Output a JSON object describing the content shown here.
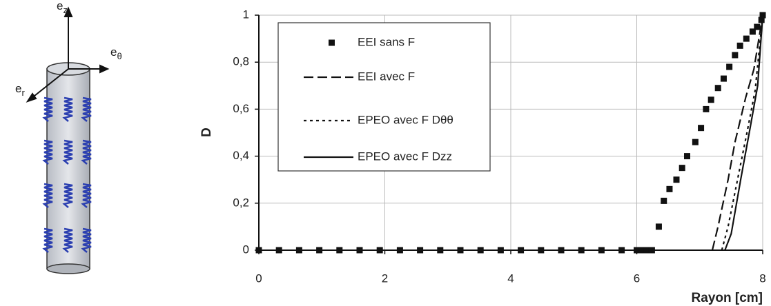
{
  "diagram": {
    "axis_labels": [
      {
        "main": "e",
        "sub": "z"
      },
      {
        "main": "e",
        "sub": "θ"
      },
      {
        "main": "e",
        "sub": "r"
      }
    ]
  },
  "chart_data": {
    "type": "line",
    "ylabel": "D",
    "xlabel": "Rayon [cm]",
    "xlim": [
      0,
      8
    ],
    "xticks": [
      0,
      2,
      4,
      6,
      8
    ],
    "ylim": [
      0,
      1
    ],
    "yticks": [
      0,
      {
        "value": 0.2,
        "label": "0,2"
      },
      {
        "value": 0.4,
        "label": "0,4"
      },
      {
        "value": 0.6,
        "label": "0,6"
      },
      {
        "value": 0.8,
        "label": "0,8"
      },
      1
    ],
    "grid": true,
    "series": [
      {
        "name": "EEI sans F",
        "color": "#111111",
        "style": "markers",
        "x": [
          0,
          0.32,
          0.64,
          0.96,
          1.28,
          1.6,
          1.92,
          2.24,
          2.56,
          2.88,
          3.2,
          3.52,
          3.84,
          4.16,
          4.48,
          4.8,
          5.12,
          5.44,
          5.76,
          6.0,
          6.08,
          6.16,
          6.24,
          6.35,
          6.43,
          6.52,
          6.63,
          6.72,
          6.8,
          6.93,
          7.02,
          7.1,
          7.18,
          7.29,
          7.38,
          7.47,
          7.56,
          7.64,
          7.74,
          7.84,
          7.91,
          7.98,
          8
        ],
        "values": [
          0,
          0,
          0,
          0,
          0,
          0,
          0,
          0,
          0,
          0,
          0,
          0,
          0,
          0,
          0,
          0,
          0,
          0,
          0,
          0,
          0,
          0,
          0,
          0.1,
          0.21,
          0.26,
          0.3,
          0.35,
          0.4,
          0.46,
          0.52,
          0.6,
          0.64,
          0.69,
          0.73,
          0.78,
          0.83,
          0.87,
          0.9,
          0.93,
          0.95,
          0.98,
          1
        ]
      },
      {
        "name": "EEI avec F",
        "color": "#111111",
        "style": "dashed",
        "x": [
          7.2,
          7.29,
          7.45,
          7.56,
          7.73,
          7.86,
          8
        ],
        "values": [
          0,
          0.1,
          0.3,
          0.46,
          0.65,
          0.77,
          1
        ]
      },
      {
        "name": "EPEO avec F Dθθ",
        "color": "#111111",
        "style": "dotted",
        "x": [
          7.35,
          7.45,
          7.6,
          7.75,
          7.88,
          8
        ],
        "values": [
          0,
          0.1,
          0.3,
          0.5,
          0.68,
          1
        ]
      },
      {
        "name": "EPEO avec F Dzz",
        "color": "#111111",
        "style": "solid",
        "x": [
          7.4,
          7.5,
          7.65,
          7.8,
          7.92,
          8
        ],
        "values": [
          0,
          0.07,
          0.3,
          0.52,
          0.7,
          1
        ]
      }
    ]
  }
}
